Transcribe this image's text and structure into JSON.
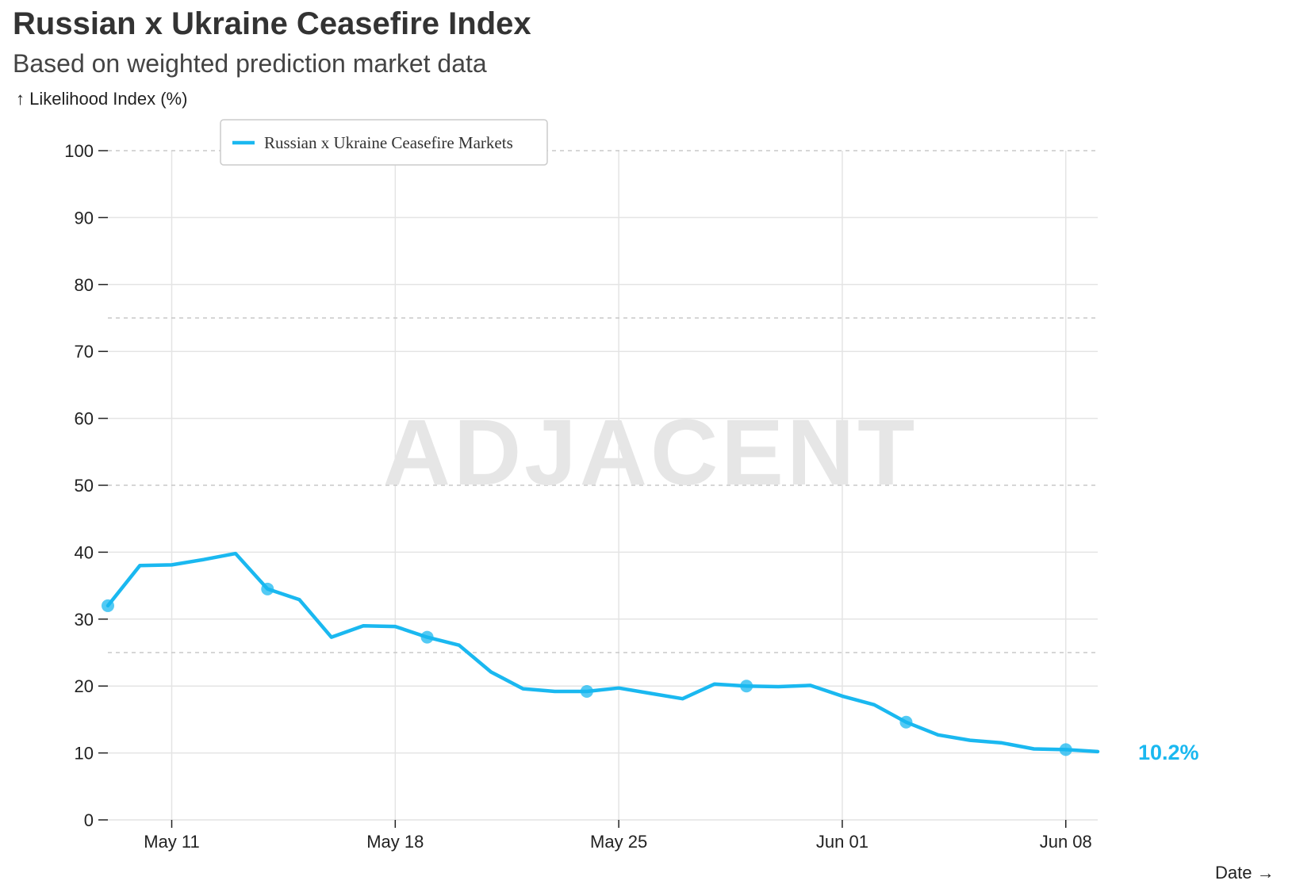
{
  "title": "Russian x Ukraine Ceasefire Index",
  "subtitle": "Based on weighted prediction market data",
  "y_axis_label": "↑ Likelihood Index (%)",
  "x_axis_label": "Date →",
  "watermark": "ADJACENT",
  "colors": {
    "series": "#1ab8f0",
    "grid": "#e4e4e4",
    "dashed_grid": "#c8c8c8",
    "watermark": "#e6e6e6"
  },
  "chart_data": {
    "type": "line",
    "title": "Russian x Ukraine Ceasefire Index",
    "subtitle": "Based on weighted prediction market data",
    "xlabel": "Date",
    "ylabel": "Likelihood Index (%)",
    "ylim": [
      0,
      100
    ],
    "xlim": [
      "2025-05-09",
      "2025-06-09"
    ],
    "y_ticks": [
      0,
      10,
      20,
      30,
      40,
      50,
      60,
      70,
      80,
      90,
      100
    ],
    "dashed_reference_lines": [
      25,
      50,
      75,
      100
    ],
    "x_ticks": [
      {
        "date": "2025-05-11",
        "label": "May 11"
      },
      {
        "date": "2025-05-18",
        "label": "May 18"
      },
      {
        "date": "2025-05-25",
        "label": "May 25"
      },
      {
        "date": "2025-06-01",
        "label": "Jun 01"
      },
      {
        "date": "2025-06-08",
        "label": "Jun 08"
      }
    ],
    "grid": true,
    "legend_position": "top-left",
    "end_label": "10.2%",
    "series": [
      {
        "name": "Russian x Ukraine Ceasefire Markets",
        "color": "#1ab8f0",
        "x": [
          "2025-05-09",
          "2025-05-10",
          "2025-05-11",
          "2025-05-12",
          "2025-05-13",
          "2025-05-14",
          "2025-05-15",
          "2025-05-16",
          "2025-05-17",
          "2025-05-18",
          "2025-05-19",
          "2025-05-20",
          "2025-05-21",
          "2025-05-22",
          "2025-05-23",
          "2025-05-24",
          "2025-05-25",
          "2025-05-26",
          "2025-05-27",
          "2025-05-28",
          "2025-05-29",
          "2025-05-30",
          "2025-05-31",
          "2025-06-01",
          "2025-06-02",
          "2025-06-03",
          "2025-06-04",
          "2025-06-05",
          "2025-06-06",
          "2025-06-07",
          "2025-06-08",
          "2025-06-09"
        ],
        "values": [
          32.0,
          38.0,
          38.1,
          38.9,
          39.8,
          34.5,
          32.9,
          27.3,
          29.0,
          28.9,
          27.3,
          26.1,
          22.1,
          19.6,
          19.2,
          19.2,
          19.7,
          18.9,
          18.1,
          20.3,
          20.0,
          19.9,
          20.1,
          18.5,
          17.2,
          14.6,
          12.7,
          11.9,
          11.5,
          10.6,
          10.5,
          10.2
        ],
        "markers": [
          "2025-05-09",
          "2025-05-14",
          "2025-05-19",
          "2025-05-24",
          "2025-05-29",
          "2025-06-03",
          "2025-06-08"
        ]
      }
    ]
  }
}
